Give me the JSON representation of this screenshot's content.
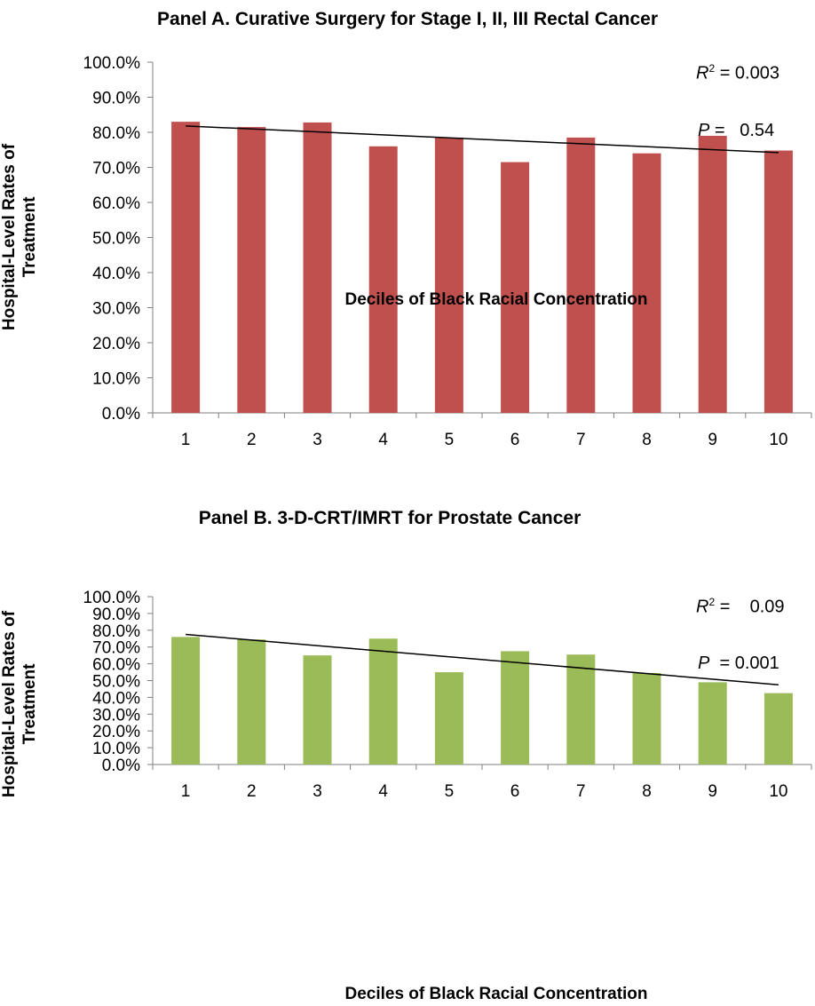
{
  "chart_data": [
    {
      "type": "bar",
      "title": "Panel A. Curative Surgery for Stage I, II, III Rectal Cancer",
      "xlabel": "Deciles of Black Racial Concentration",
      "ylabel_line1": "Hospital-Level Rates of",
      "ylabel_line2": "Treatment",
      "categories": [
        "1",
        "2",
        "3",
        "4",
        "5",
        "6",
        "7",
        "8",
        "9",
        "10"
      ],
      "values": [
        83.0,
        81.5,
        82.8,
        76.0,
        78.5,
        71.5,
        78.5,
        74.0,
        79.0,
        74.8
      ],
      "trendline": [
        81.8,
        74.2
      ],
      "ylim": [
        0,
        100
      ],
      "yticks": [
        "0.0%",
        "10.0%",
        "20.0%",
        "30.0%",
        "40.0%",
        "50.0%",
        "60.0%",
        "70.0%",
        "80.0%",
        "90.0%",
        "100.0%"
      ],
      "color": "#c0504d",
      "stats": {
        "r2_symbol": "R",
        "r2_sup": "2",
        "r2_text": " = 0.003",
        "p_symbol": "P",
        "p_text": " =   0.54"
      }
    },
    {
      "type": "bar",
      "title": "Panel B. 3-D-CRT/IMRT for Prostate Cancer",
      "xlabel": "Deciles of Black Racial Concentration",
      "ylabel_line1": "Hospital-Level Rates of",
      "ylabel_line2": "Treatment",
      "categories": [
        "1",
        "2",
        "3",
        "4",
        "5",
        "6",
        "7",
        "8",
        "9",
        "10"
      ],
      "values": [
        76.0,
        74.5,
        65.0,
        75.0,
        55.0,
        67.5,
        65.5,
        54.5,
        49.0,
        42.5
      ],
      "trendline": [
        77.5,
        47.5
      ],
      "ylim": [
        0,
        100
      ],
      "yticks": [
        "0.0%",
        "10.0%",
        "20.0%",
        "30.0%",
        "40.0%",
        "50.0%",
        "60.0%",
        "70.0%",
        "80.0%",
        "90.0%",
        "100.0%"
      ],
      "color": "#9bbb59",
      "stats": {
        "r2_symbol": "R",
        "r2_sup": "2",
        "r2_text": " =    0.09",
        "p_symbol": "P",
        "p_text": "  = 0.001"
      }
    }
  ]
}
